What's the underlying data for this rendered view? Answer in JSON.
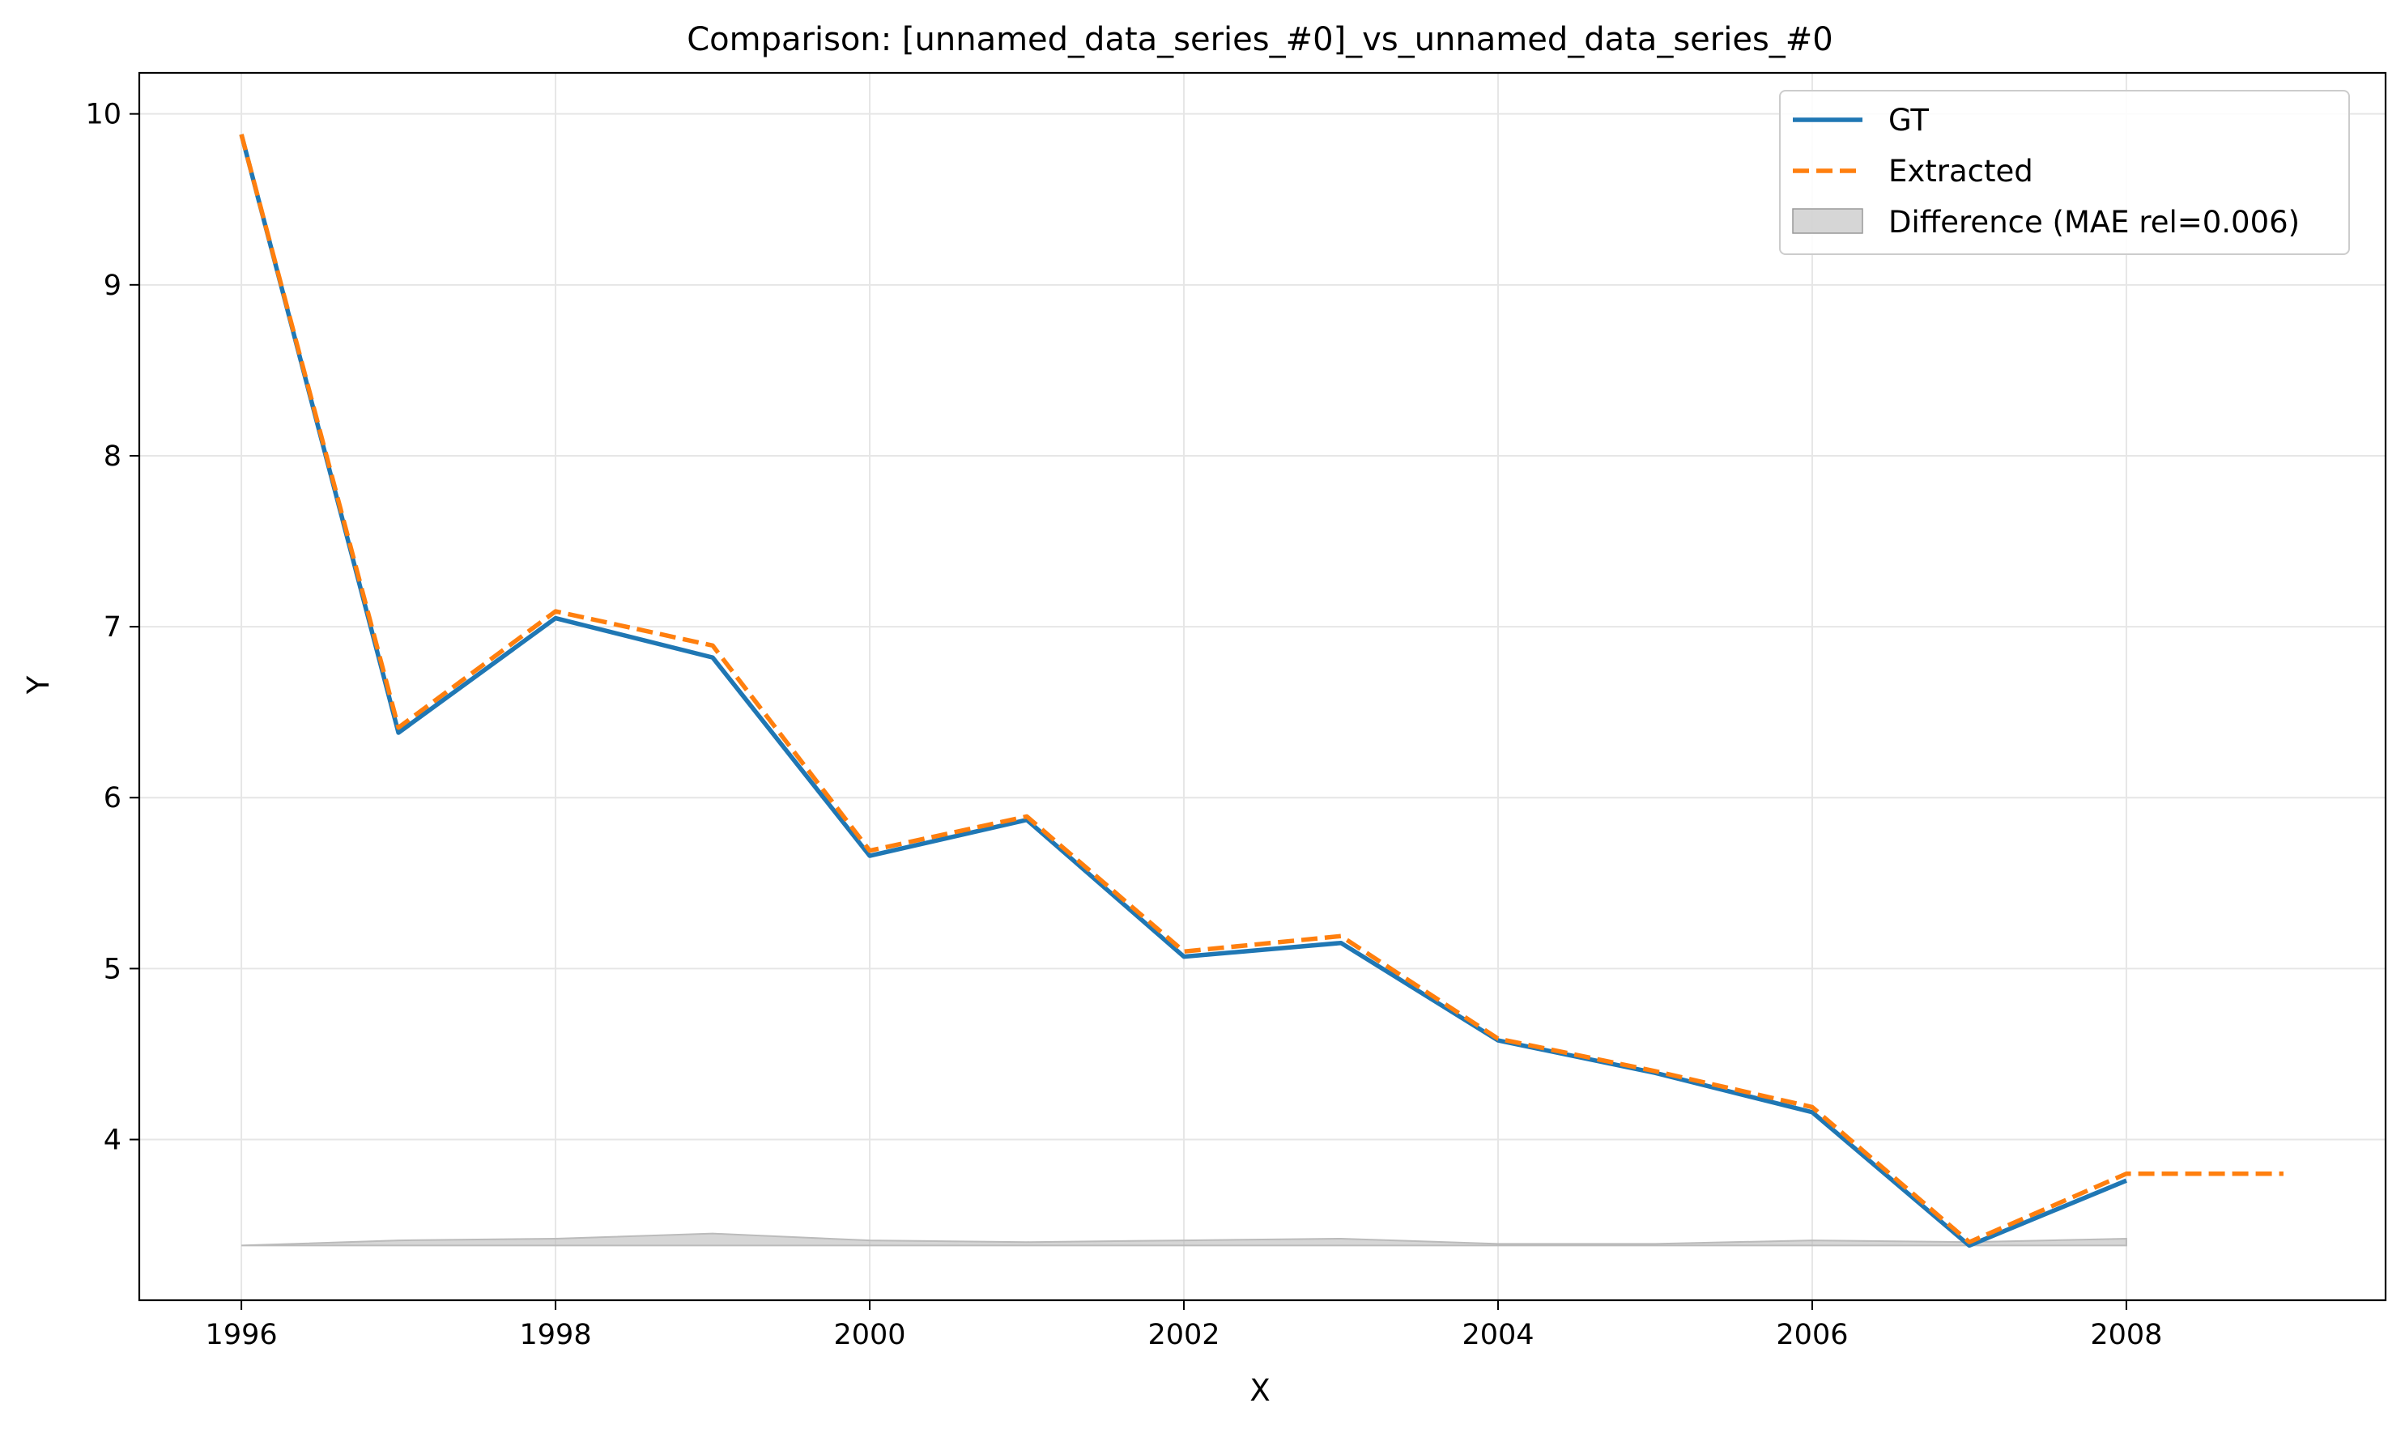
{
  "chart_data": {
    "type": "line",
    "title": "Comparison: [unnamed_data_series_#0]_vs_unnamed_data_series_#0",
    "xlabel": "X",
    "ylabel": "Y",
    "xlim": [
      1995.35,
      2009.65
    ],
    "ylim": [
      3.06,
      10.24
    ],
    "grid": true,
    "legend_position": "top-right",
    "x_ticks": [
      "1996",
      "1998",
      "2000",
      "2002",
      "2004",
      "2006",
      "2008"
    ],
    "y_ticks": [
      "4",
      "5",
      "6",
      "7",
      "8",
      "9",
      "10"
    ],
    "series": [
      {
        "name": "GT",
        "style": "solid",
        "color": "#1f77b4",
        "x": [
          1996,
          1997,
          1998,
          1999,
          2000,
          2001,
          2002,
          2003,
          2004,
          2005,
          2006,
          2007,
          2008
        ],
        "y": [
          9.88,
          6.38,
          7.05,
          6.82,
          5.66,
          5.87,
          5.07,
          5.15,
          4.58,
          4.39,
          4.16,
          3.38,
          3.76
        ]
      },
      {
        "name": "Extracted",
        "style": "dashed",
        "color": "#ff7f0e",
        "x": [
          1996,
          1997,
          1998,
          1999,
          2000,
          2001,
          2002,
          2003,
          2004,
          2005,
          2006,
          2007,
          2008,
          2009
        ],
        "y": [
          9.88,
          6.41,
          7.09,
          6.89,
          5.69,
          5.89,
          5.1,
          5.19,
          4.59,
          4.4,
          4.19,
          3.4,
          3.8,
          3.8
        ]
      },
      {
        "name": "Difference (MAE rel=0.006)",
        "style": "fill",
        "color": "#bbbbbb",
        "x": [
          1996,
          1997,
          1998,
          1999,
          2000,
          2001,
          2002,
          2003,
          2004,
          2005,
          2006,
          2007,
          2008
        ],
        "y": [
          0.0,
          0.03,
          0.04,
          0.07,
          0.03,
          0.02,
          0.03,
          0.04,
          0.01,
          0.01,
          0.03,
          0.02,
          0.04
        ]
      }
    ]
  }
}
